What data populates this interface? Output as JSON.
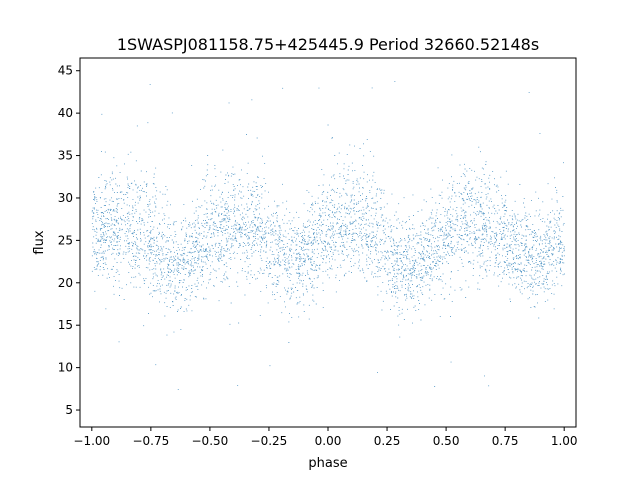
{
  "chart_data": {
    "type": "scatter",
    "title": "1SWASPJ081158.75+425445.9 Period 32660.52148s",
    "xlabel": "phase",
    "ylabel": "flux",
    "xlim": [
      -1.05,
      1.05
    ],
    "ylim": [
      3.0,
      46.5
    ],
    "xticks": [
      -1.0,
      -0.75,
      -0.5,
      -0.25,
      0.0,
      0.25,
      0.5,
      0.75,
      1.0
    ],
    "xtick_labels": [
      "−1.00",
      "−0.75",
      "−0.50",
      "−0.25",
      "0.00",
      "0.25",
      "0.50",
      "0.75",
      "1.00"
    ],
    "yticks": [
      5,
      10,
      15,
      20,
      25,
      30,
      35,
      40,
      45
    ],
    "ytick_labels": [
      "5",
      "10",
      "15",
      "20",
      "25",
      "30",
      "35",
      "40",
      "45"
    ],
    "grid": false,
    "legend": false,
    "marker_color": "#1f77b4",
    "series": [
      {
        "phase_range": [
          -1.0,
          1.0
        ],
        "approx_points": 60000,
        "trend": {
          "phase": [
            -1.0,
            -0.9,
            -0.8,
            -0.7,
            -0.63,
            -0.55,
            -0.45,
            -0.38,
            -0.3,
            -0.2,
            -0.13,
            -0.05,
            0.05,
            0.1,
            0.2,
            0.28,
            0.37,
            0.45,
            0.55,
            0.62,
            0.7,
            0.8,
            0.87,
            0.95,
            1.0
          ],
          "upper": [
            32.5,
            33.5,
            34.5,
            31.0,
            27.5,
            30.0,
            33.5,
            34.5,
            33.0,
            29.5,
            27.5,
            31.0,
            34.5,
            35.0,
            33.0,
            29.0,
            27.5,
            30.5,
            33.0,
            34.5,
            33.0,
            30.5,
            29.0,
            30.5,
            32.0
          ],
          "center": [
            26.0,
            26.5,
            26.0,
            23.0,
            22.0,
            24.0,
            26.5,
            27.0,
            26.0,
            23.5,
            22.5,
            24.5,
            27.0,
            27.0,
            25.5,
            22.5,
            21.5,
            24.0,
            26.5,
            27.0,
            26.0,
            23.5,
            23.0,
            24.0,
            25.0
          ],
          "lower": [
            19.5,
            20.0,
            19.5,
            17.5,
            16.0,
            18.0,
            20.0,
            20.5,
            19.5,
            17.0,
            16.5,
            18.5,
            20.5,
            20.5,
            19.0,
            17.0,
            16.5,
            18.0,
            20.0,
            21.0,
            20.0,
            18.5,
            17.5,
            18.5,
            20.0
          ]
        },
        "outlier_range": [
          5,
          44
        ]
      }
    ]
  }
}
